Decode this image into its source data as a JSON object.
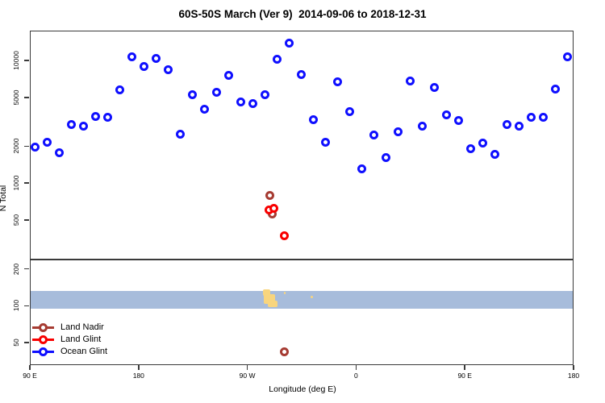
{
  "title": "60S-50S March (Ver 9)  2014-09-06 to 2018-12-31",
  "y_axis_label": "N Total",
  "x_axis_label": "Longitude (deg E)",
  "legend": {
    "items": [
      {
        "label": "Land Nadir",
        "color": "#A63B32"
      },
      {
        "label": "Land Glint",
        "color": "#F80000"
      },
      {
        "label": "Ocean Glint",
        "color": "#0F0FFF"
      }
    ]
  },
  "colors": {
    "axis": "#3a3a3a",
    "ocean_band": "#A7BCDB",
    "land_patch": "#F8D57E",
    "land_nadir": "#A63B32",
    "land_glint": "#F80000",
    "ocean_glint": "#0F0FFF"
  },
  "chart_data": {
    "type": "scatter",
    "title": "60S-50S March (Ver 9)  2014-09-06 to 2018-12-31",
    "xlabel": "Longitude (deg E)",
    "ylabel": "N Total",
    "x_axis": {
      "range_deg": [
        90,
        540
      ],
      "ticks": [
        {
          "deg": 90,
          "label": "90 E"
        },
        {
          "deg": 180,
          "label": "180"
        },
        {
          "deg": 270,
          "label": "90 W"
        },
        {
          "deg": 360,
          "label": "0"
        },
        {
          "deg": 450,
          "label": "90 E"
        },
        {
          "deg": 540,
          "label": "180"
        }
      ]
    },
    "y_axis": {
      "scale": "log10",
      "range": [
        33,
        17500
      ],
      "ticks": [
        50,
        100,
        200,
        500,
        1000,
        2000,
        5000,
        10000
      ]
    },
    "legend_position": "bottom-left",
    "grid": false,
    "reference_line": {
      "n": 240
    },
    "map_band": {
      "description": "light-blue ocean strip with yellow land patches (Patagonia region)",
      "n_range": [
        96,
        134
      ],
      "land_patches": [
        {
          "lon": [
            283,
            289
          ],
          "n": [
            120,
            136
          ]
        },
        {
          "lon": [
            284,
            293
          ],
          "n": [
            103,
            124
          ]
        },
        {
          "lon": [
            287,
            295
          ],
          "n": [
            97,
            110
          ]
        },
        {
          "lon": [
            300.5,
            302
          ],
          "n": [
            124,
            130
          ]
        },
        {
          "lon": [
            323,
            325
          ],
          "n": [
            114,
            120
          ]
        }
      ]
    },
    "series": [
      {
        "name": "Land Nadir",
        "color": "#A63B32",
        "points": [
          {
            "lon": 289,
            "n": 790
          },
          {
            "lon": 291,
            "n": 560
          },
          {
            "lon": 301,
            "n": 42
          }
        ]
      },
      {
        "name": "Land Glint",
        "color": "#F80000",
        "points": [
          {
            "lon": 288,
            "n": 600
          },
          {
            "lon": 292,
            "n": 620
          },
          {
            "lon": 301,
            "n": 370
          }
        ]
      },
      {
        "name": "Ocean Glint",
        "color": "#0F0FFF",
        "points": [
          {
            "lon": 95,
            "n": 1950
          },
          {
            "lon": 105,
            "n": 2150
          },
          {
            "lon": 115,
            "n": 1750
          },
          {
            "lon": 125,
            "n": 3000
          },
          {
            "lon": 135,
            "n": 2900
          },
          {
            "lon": 145,
            "n": 3450
          },
          {
            "lon": 155,
            "n": 3400
          },
          {
            "lon": 165,
            "n": 5700
          },
          {
            "lon": 175,
            "n": 10600
          },
          {
            "lon": 185,
            "n": 8900
          },
          {
            "lon": 195,
            "n": 10300
          },
          {
            "lon": 205,
            "n": 8300
          },
          {
            "lon": 215,
            "n": 2500
          },
          {
            "lon": 225,
            "n": 5200
          },
          {
            "lon": 235,
            "n": 4000
          },
          {
            "lon": 245,
            "n": 5450
          },
          {
            "lon": 255,
            "n": 7500
          },
          {
            "lon": 265,
            "n": 4550
          },
          {
            "lon": 275,
            "n": 4400
          },
          {
            "lon": 285,
            "n": 5200
          },
          {
            "lon": 295,
            "n": 10200
          },
          {
            "lon": 305,
            "n": 13700
          },
          {
            "lon": 315,
            "n": 7600
          },
          {
            "lon": 325,
            "n": 3250
          },
          {
            "lon": 335,
            "n": 2150
          },
          {
            "lon": 345,
            "n": 6600
          },
          {
            "lon": 355,
            "n": 3800
          },
          {
            "lon": 365,
            "n": 1300
          },
          {
            "lon": 375,
            "n": 2450
          },
          {
            "lon": 385,
            "n": 1600
          },
          {
            "lon": 395,
            "n": 2600
          },
          {
            "lon": 405,
            "n": 6700
          },
          {
            "lon": 415,
            "n": 2900
          },
          {
            "lon": 425,
            "n": 6000
          },
          {
            "lon": 435,
            "n": 3600
          },
          {
            "lon": 445,
            "n": 3200
          },
          {
            "lon": 455,
            "n": 1900
          },
          {
            "lon": 465,
            "n": 2100
          },
          {
            "lon": 475,
            "n": 1700
          },
          {
            "lon": 485,
            "n": 3000
          },
          {
            "lon": 495,
            "n": 2900
          },
          {
            "lon": 505,
            "n": 3400
          },
          {
            "lon": 515,
            "n": 3400
          },
          {
            "lon": 525,
            "n": 5800
          },
          {
            "lon": 535,
            "n": 10600
          }
        ]
      }
    ]
  }
}
